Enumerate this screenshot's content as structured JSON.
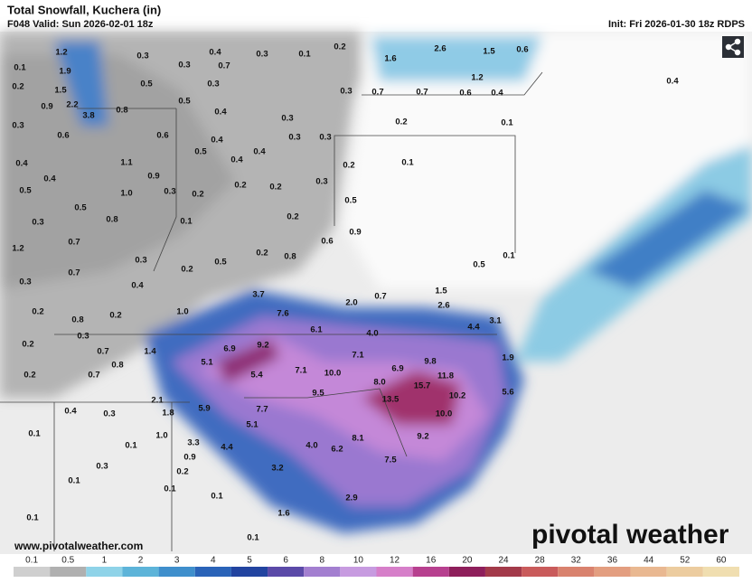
{
  "header": {
    "title": "Total Snowfall, Kuchera (in)",
    "valid": "F048 Valid: Sun 2026-02-01 18z",
    "init": "Init: Fri 2026-01-30 18z RDPS"
  },
  "map": {
    "point_labels": [
      "0.1",
      "1.2",
      "1.9",
      "0.2",
      "1.5",
      "0.9",
      "2.2",
      "3.8",
      "0.8",
      "0.3",
      "0.3",
      "0.4",
      "0.7",
      "0.3",
      "0.1",
      "0.2",
      "0.5",
      "0.3",
      "0.5",
      "0.4",
      "0.3",
      "0.3",
      "0.6",
      "0.6",
      "0.4",
      "0.3",
      "0.3",
      "1.1",
      "0.5",
      "0.4",
      "0.4",
      "0.4",
      "0.4",
      "0.9",
      "0.5",
      "0.3",
      "0.2",
      "0.2",
      "0.2",
      "0.3",
      "1.0",
      "0.5",
      "0.8",
      "0.1",
      "0.2",
      "0.3",
      "0.9",
      "0.6",
      "0.7",
      "1.2",
      "0.3",
      "0.5",
      "0.2",
      "0.2",
      "0.8",
      "0.7",
      "0.3",
      "0.4",
      "0.2",
      "0.8",
      "0.2",
      "1.0",
      "3.7",
      "7.6",
      "6.1",
      "4.0",
      "2.0",
      "0.7",
      "1.5",
      "2.6",
      "4.4",
      "3.1",
      "0.5",
      "0.1",
      "0.3",
      "0.2",
      "0.7",
      "0.8",
      "1.4",
      "6.9",
      "9.2",
      "5.1",
      "0.2",
      "0.7",
      "7.1",
      "10.0",
      "7.1",
      "6.9",
      "9.8",
      "11.8",
      "1.9",
      "5.4",
      "8.0",
      "15.7",
      "10.2",
      "5.6",
      "9.5",
      "13.5",
      "2.1",
      "0.4",
      "0.3",
      "1.8",
      "5.9",
      "7.7",
      "10.0",
      "5.1",
      "8.1",
      "0.1",
      "1.0",
      "9.2",
      "0.1",
      "3.3",
      "4.4",
      "4.0",
      "6.2",
      "0.9",
      "7.5",
      "0.3",
      "0.2",
      "3.2",
      "0.1",
      "0.1",
      "0.1",
      "2.9",
      "1.6",
      "0.1",
      "0.1",
      "1.6",
      "2.6",
      "1.5",
      "0.6",
      "1.2",
      "0.3",
      "0.7",
      "0.7",
      "0.6",
      "0.4",
      "0.2",
      "0.1",
      "0.2",
      "0.1",
      "0.5",
      "0.4"
    ]
  },
  "colorbar": {
    "ticks": [
      0.1,
      0.5,
      1,
      2,
      3,
      4,
      5,
      6,
      8,
      10,
      12,
      16,
      20,
      24,
      28,
      32,
      36,
      44,
      52,
      60
    ],
    "colors": [
      "#cfcfcf",
      "#b0b0b0",
      "#8fd3e8",
      "#5db4d9",
      "#3f8fcc",
      "#2a63b8",
      "#2244a0",
      "#5b4aa8",
      "#a37fd0",
      "#c79be0",
      "#d67fc9",
      "#b7408f",
      "#8e1f5b",
      "#a33a4a",
      "#c95b5b",
      "#d9826e",
      "#e39e80",
      "#e9b891",
      "#eccc9f",
      "#f0deb0"
    ]
  },
  "footer": {
    "url": "www.pivotalweather.com",
    "logo": "pivotal weather"
  }
}
